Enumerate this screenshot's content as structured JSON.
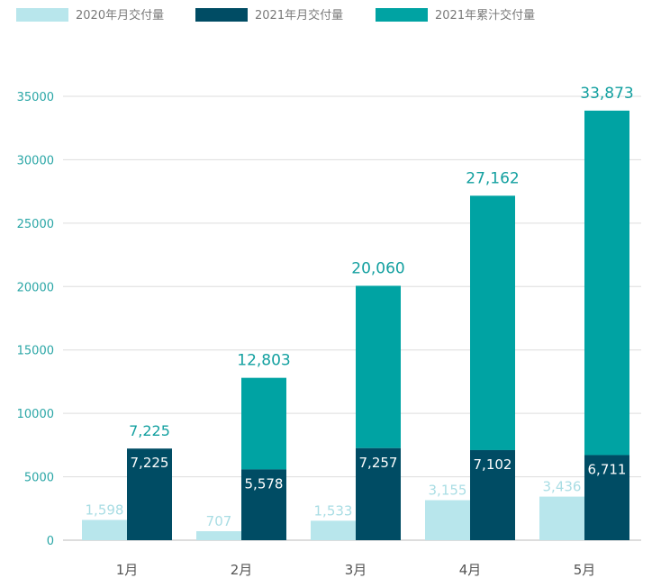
{
  "colors": {
    "s2020": "#b8e6ec",
    "s2021": "#004c64",
    "cum": "#00a3a3",
    "grid": "#dddddd",
    "axis": "#bbbbbb"
  },
  "chart_data": {
    "type": "bar",
    "categories": [
      "1月",
      "2月",
      "3月",
      "4月",
      "5月"
    ],
    "series": [
      {
        "name": "2020年月交付量",
        "values": [
          1598,
          707,
          1533,
          3155,
          3436
        ],
        "labels": [
          "1,598",
          "707",
          "1,533",
          "3,155",
          "3,436"
        ]
      },
      {
        "name": "2021年月交付量",
        "values": [
          7225,
          5578,
          7257,
          7102,
          6711
        ],
        "labels": [
          "7,225",
          "5,578",
          "7,257",
          "7,102",
          "6,711"
        ]
      },
      {
        "name": "2021年累汁交付量",
        "values": [
          7225,
          12803,
          20060,
          27162,
          33873
        ],
        "labels": [
          "7,225",
          "12,803",
          "20,060",
          "27,162",
          "33,873"
        ]
      }
    ],
    "y_ticks": [
      "0",
      "5000",
      "10000",
      "15000",
      "20000",
      "25000",
      "30000",
      "35000"
    ],
    "ylim": [
      0,
      35000
    ],
    "grid": true,
    "legend_position": "top-left"
  }
}
